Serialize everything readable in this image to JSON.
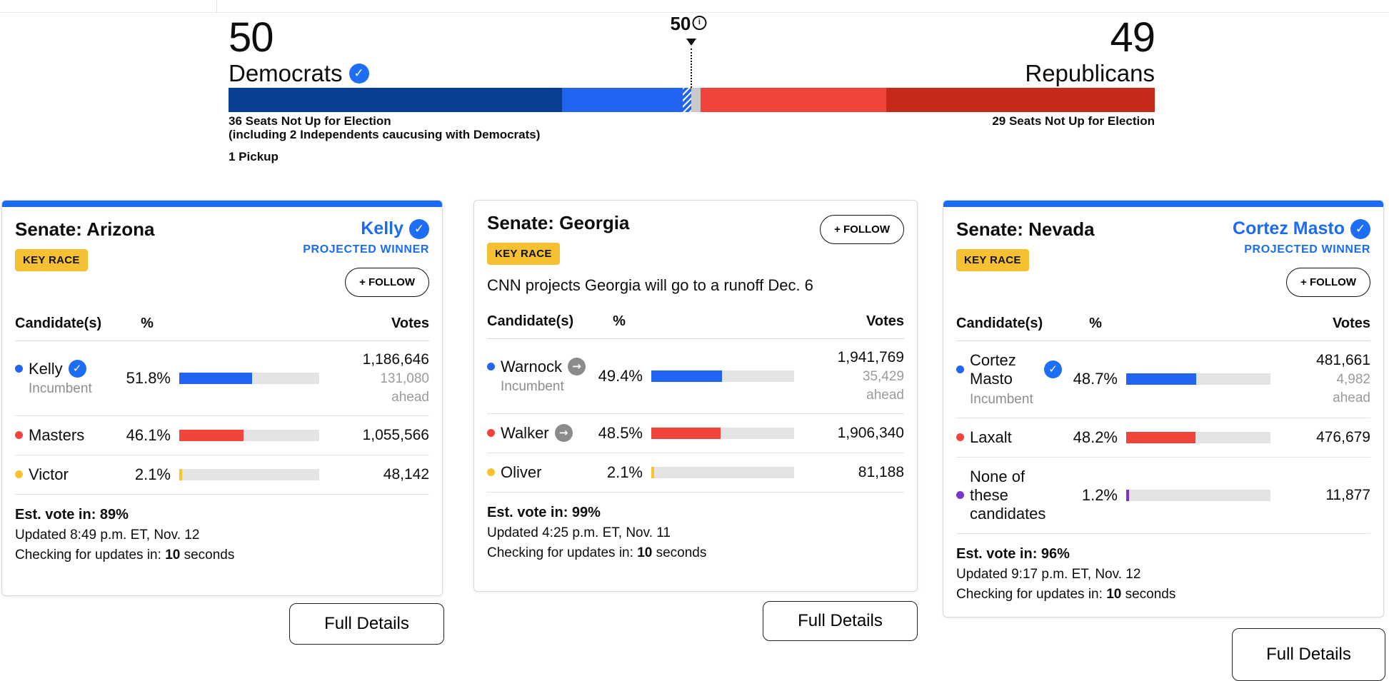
{
  "labels": {
    "key_race": "KEY RACE",
    "follow": "+ FOLLOW",
    "projected_winner": "PROJECTED WINNER",
    "full_details": "Full Details",
    "candidates": "Candidate(s)",
    "percent": "%",
    "votes": "Votes",
    "incumbent": "Incumbent",
    "ahead": "ahead"
  },
  "balance_of_power": {
    "dem": {
      "count": "50",
      "party": "Democrats",
      "seats_note": "36 Seats Not Up for Election",
      "seats_note2": "(including 2 Independents caucusing with Democrats)",
      "pickup": "1 Pickup"
    },
    "rep": {
      "count": "49",
      "party": "Republicans",
      "seats_note": "29 Seats Not Up for Election"
    },
    "marker": {
      "value": "50"
    },
    "segments": [
      {
        "name": "dem-not-up",
        "seats": 36,
        "color": "#0a3d94",
        "hatch": false
      },
      {
        "name": "dem-won",
        "seats": 13,
        "color": "#2264f2",
        "hatch": false
      },
      {
        "name": "dem-pickup",
        "seats": 1,
        "color": "#2264f2",
        "hatch": true
      },
      {
        "name": "undecided",
        "seats": 1,
        "color": "#c9c9c9",
        "hatch": false
      },
      {
        "name": "rep-won",
        "seats": 20,
        "color": "#f0443c",
        "hatch": false
      },
      {
        "name": "rep-not-up",
        "seats": 29,
        "color": "#c52a1c",
        "hatch": false
      }
    ]
  },
  "cards": [
    {
      "title": "Senate: Arizona",
      "winner": "Kelly",
      "rows": [
        {
          "name": "Kelly",
          "color": "#2264f2",
          "pct": 51.8,
          "percent": "51.8%",
          "votes": "1,186,646",
          "ahead": "131,080"
        },
        {
          "name": "Masters",
          "color": "#f0443c",
          "pct": 46.1,
          "percent": "46.1%",
          "votes": "1,055,566"
        },
        {
          "name": "Victor",
          "color": "#fcc32d",
          "pct": 2.1,
          "percent": "2.1%",
          "votes": "48,142"
        }
      ],
      "footer": {
        "est": "Est. vote in: 89%",
        "updated": "Updated 8:49 p.m. ET, Nov. 12",
        "checking_pre": "Checking for updates in: ",
        "checking_num": "10",
        "checking_post": " seconds"
      }
    },
    {
      "title": "Senate: Georgia",
      "note": "CNN projects Georgia will go to a runoff Dec. 6",
      "rows": [
        {
          "name": "Warnock",
          "color": "#2264f2",
          "pct": 49.4,
          "percent": "49.4%",
          "votes": "1,941,769",
          "ahead": "35,429"
        },
        {
          "name": "Walker",
          "color": "#f0443c",
          "pct": 48.5,
          "percent": "48.5%",
          "votes": "1,906,340"
        },
        {
          "name": "Oliver",
          "color": "#fcc32d",
          "pct": 2.1,
          "percent": "2.1%",
          "votes": "81,188"
        }
      ],
      "footer": {
        "est": "Est. vote in: 99%",
        "updated": "Updated 4:25 p.m. ET, Nov. 11",
        "checking_pre": "Checking for updates in: ",
        "checking_num": "10",
        "checking_post": " seconds"
      }
    },
    {
      "title": "Senate: Nevada",
      "winner": "Cortez Masto",
      "rows": [
        {
          "name": "Cortez Masto",
          "color": "#2264f2",
          "pct": 48.7,
          "percent": "48.7%",
          "votes": "481,661",
          "ahead": "4,982"
        },
        {
          "name": "Laxalt",
          "color": "#f0443c",
          "pct": 48.2,
          "percent": "48.2%",
          "votes": "476,679"
        },
        {
          "name": "None of these candidates",
          "color": "#7c35c9",
          "pct": 1.2,
          "percent": "1.2%",
          "votes": "11,877"
        }
      ],
      "footer": {
        "est": "Est. vote in: 96%",
        "updated": "Updated 9:17 p.m. ET, Nov. 12",
        "checking_pre": "Checking for updates in: ",
        "checking_num": "10",
        "checking_post": " seconds"
      }
    }
  ]
}
